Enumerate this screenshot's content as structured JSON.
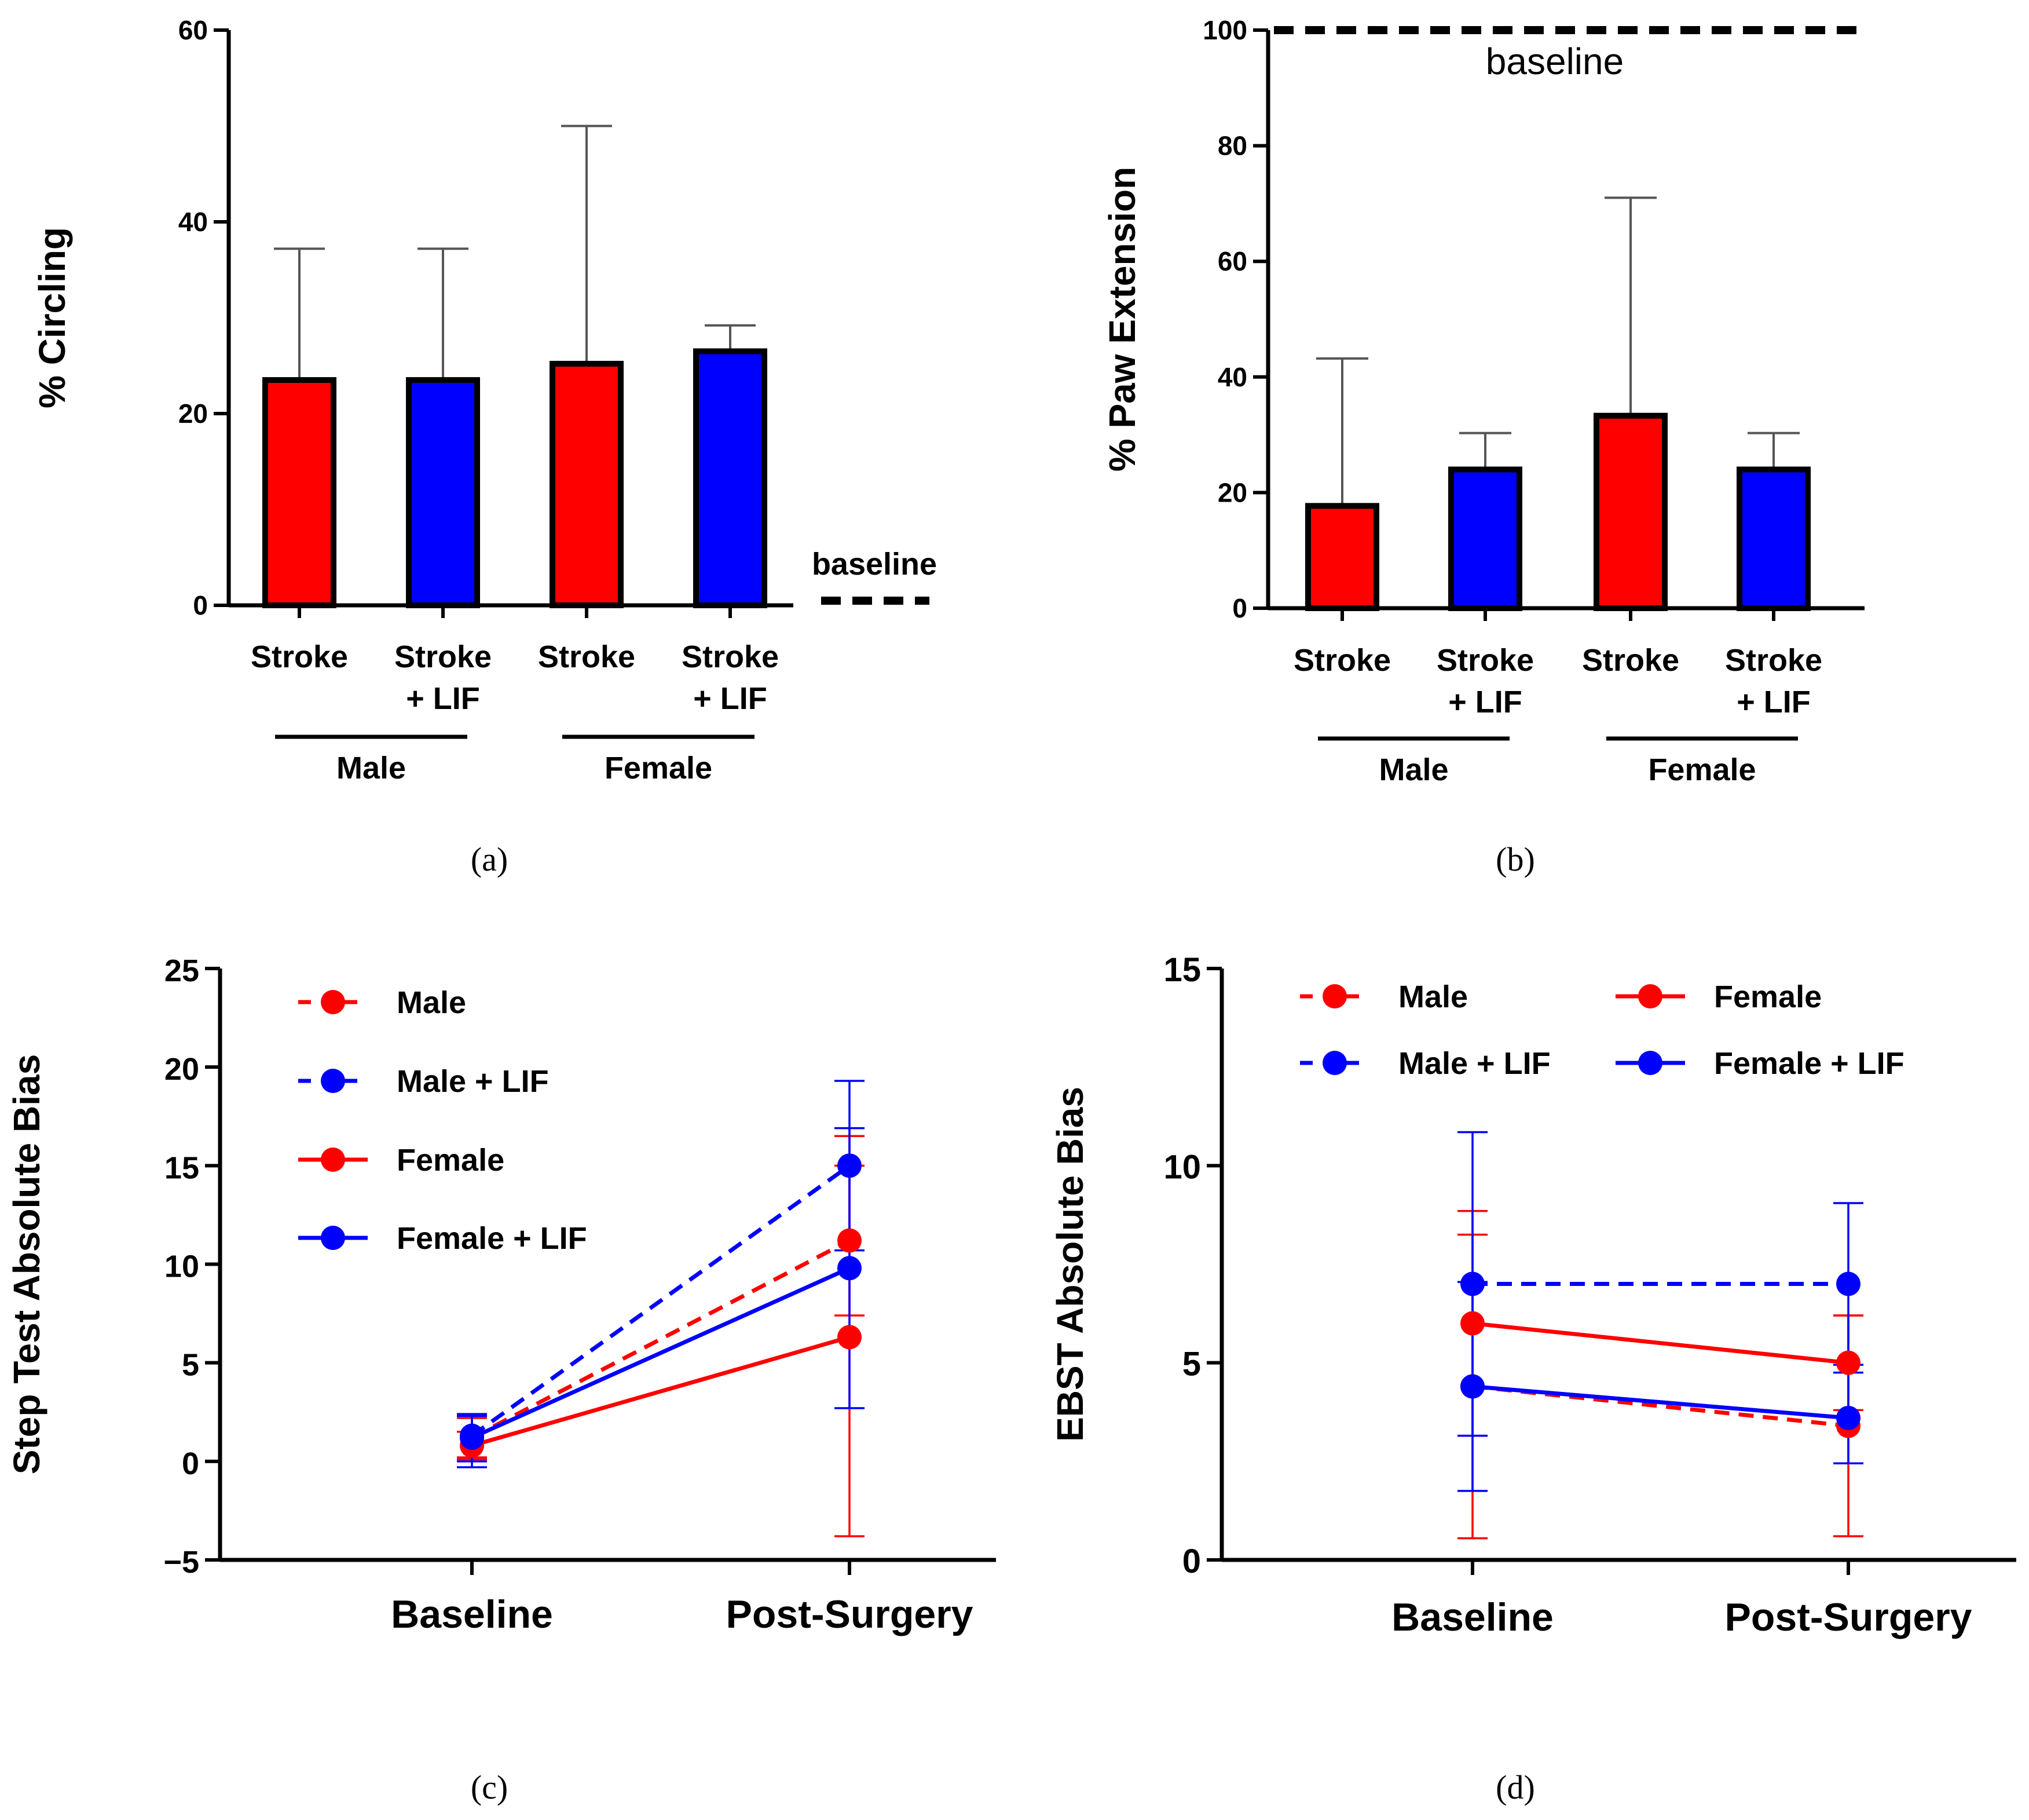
{
  "colors": {
    "red": "#ff0000",
    "blue": "#0000ff",
    "black": "#000000",
    "err_gray": "#555555"
  },
  "chart_data": [
    {
      "id": "a",
      "type": "bar",
      "panel_label": "(a)",
      "ylabel": "% Circling",
      "ylim": [
        0,
        60
      ],
      "yticks": [
        0,
        20,
        40,
        60
      ],
      "categories": [
        "Stroke",
        "Stroke\n+ LIF",
        "Stroke",
        "Stroke\n+ LIF"
      ],
      "category_lines": [
        [
          "Stroke"
        ],
        [
          "Stroke",
          "+ LIF"
        ],
        [
          "Stroke"
        ],
        [
          "Stroke",
          "+ LIF"
        ]
      ],
      "groups": [
        "Male",
        "Female"
      ],
      "values": [
        23.5,
        23.5,
        25.2,
        26.5
      ],
      "error_upper": [
        37.2,
        37.2,
        50.0,
        29.2
      ],
      "bar_colors": [
        "red",
        "blue",
        "red",
        "blue"
      ],
      "baseline_value": 0.5,
      "baseline_label": "baseline"
    },
    {
      "id": "b",
      "type": "bar",
      "panel_label": "(b)",
      "ylabel": "% Paw Extension",
      "ylim": [
        0,
        100
      ],
      "yticks": [
        0,
        20,
        40,
        60,
        80,
        100
      ],
      "categories": [
        "Stroke",
        "Stroke\n+ LIF",
        "Stroke",
        "Stroke\n+ LIF"
      ],
      "category_lines": [
        [
          "Stroke"
        ],
        [
          "Stroke",
          "+ LIF"
        ],
        [
          "Stroke"
        ],
        [
          "Stroke",
          "+ LIF"
        ]
      ],
      "groups": [
        "Male",
        "Female"
      ],
      "values": [
        17.7,
        24.0,
        33.3,
        24.0
      ],
      "error_upper": [
        43.2,
        30.3,
        71.0,
        30.3
      ],
      "bar_colors": [
        "red",
        "blue",
        "red",
        "blue"
      ],
      "baseline_value": 100,
      "baseline_label": "baseline"
    },
    {
      "id": "c",
      "type": "line",
      "panel_label": "(c)",
      "ylabel": "Step Test Absolute Bias",
      "ylim": [
        -5,
        25
      ],
      "yticks": [
        -5,
        0,
        5,
        10,
        15,
        20,
        25
      ],
      "ytick_labels": [
        "−5",
        "0",
        "5",
        "10",
        "15",
        "20",
        "25"
      ],
      "x": [
        "Baseline",
        "Post-Surgery"
      ],
      "series": [
        {
          "name": "Male",
          "color": "red",
          "dashed": true,
          "values": [
            1.2,
            11.2
          ],
          "err_low": [
            0.2,
            7.4
          ],
          "err_high": [
            2.2,
            15.0
          ]
        },
        {
          "name": "Male + LIF",
          "color": "blue",
          "dashed": true,
          "values": [
            1.3,
            15.0
          ],
          "err_low": [
            -0.3,
            10.7
          ],
          "err_high": [
            2.3,
            19.3
          ]
        },
        {
          "name": "Female",
          "color": "red",
          "dashed": false,
          "values": [
            0.8,
            6.3
          ],
          "err_low": [
            0.1,
            -3.8
          ],
          "err_high": [
            1.5,
            16.5
          ]
        },
        {
          "name": "Female + LIF",
          "color": "blue",
          "dashed": false,
          "values": [
            1.2,
            9.8
          ],
          "err_low": [
            0.0,
            2.7
          ],
          "err_high": [
            2.4,
            16.9
          ]
        }
      ]
    },
    {
      "id": "d",
      "type": "line",
      "panel_label": "(d)",
      "ylabel": "EBST Absolute Bias",
      "ylim": [
        0,
        15
      ],
      "yticks": [
        0,
        5,
        10,
        15
      ],
      "x": [
        "Baseline",
        "Post-Surgery"
      ],
      "series": [
        {
          "name": "Male",
          "color": "red",
          "dashed": true,
          "values": [
            4.4,
            3.4
          ],
          "err_low": [
            0.55,
            0.6
          ],
          "err_high": [
            8.25,
            6.2
          ]
        },
        {
          "name": "Female",
          "color": "red",
          "dashed": false,
          "values": [
            6.0,
            5.0
          ],
          "err_low": [
            3.15,
            3.8
          ],
          "err_high": [
            8.85,
            6.2
          ]
        },
        {
          "name": "Male + LIF",
          "color": "blue",
          "dashed": true,
          "values": [
            7.0,
            7.0
          ],
          "err_low": [
            3.15,
            4.95
          ],
          "err_high": [
            10.85,
            9.05
          ]
        },
        {
          "name": "Female + LIF",
          "color": "blue",
          "dashed": false,
          "values": [
            4.4,
            3.6
          ],
          "err_low": [
            1.75,
            2.45
          ],
          "err_high": [
            7.05,
            4.75
          ]
        }
      ]
    }
  ]
}
